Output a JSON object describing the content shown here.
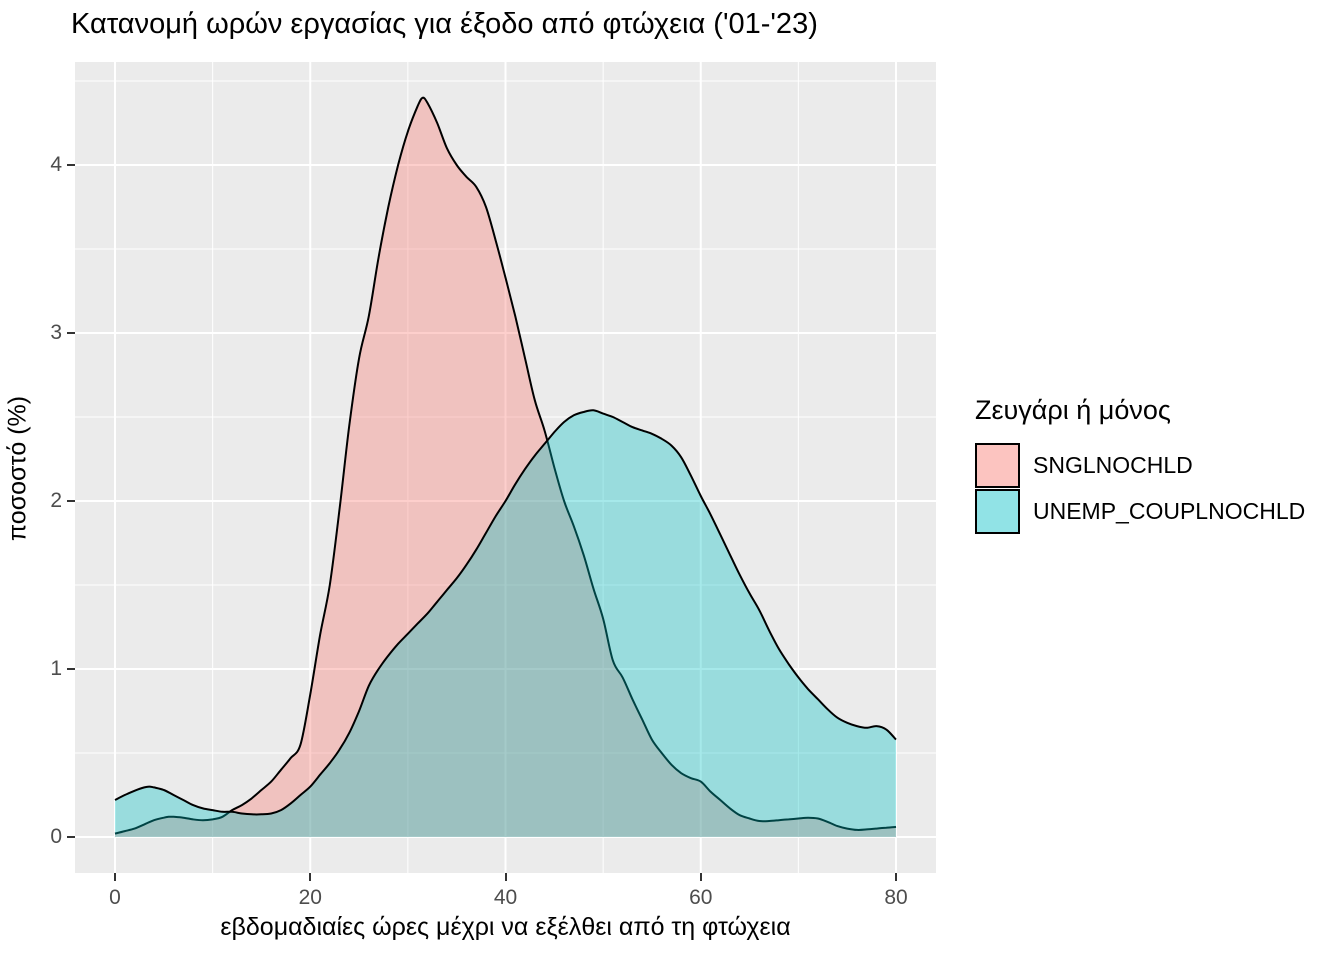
{
  "title": "Κατανομή ωρών εργασίας για έξοδο από φτώχεια ('01-'23)",
  "axes": {
    "x": {
      "label": "εβδομαδιαίες ώρες μέχρι να εξέλθει από τη φτώχεια",
      "tick_labels": [
        "0",
        "20",
        "40",
        "60",
        "80"
      ],
      "tick_values": [
        0,
        20,
        40,
        60,
        80
      ],
      "minor_tick_values": [
        10,
        30,
        50,
        70
      ]
    },
    "y": {
      "label": "ποσοστό (%)",
      "tick_labels": [
        "0",
        "1",
        "2",
        "3",
        "4"
      ],
      "tick_values": [
        0,
        1,
        2,
        3,
        4
      ],
      "minor_tick_values": [
        0.5,
        1.5,
        2.5,
        3.5,
        4.5
      ]
    }
  },
  "legend": {
    "title": "Ζευγάρι ή μόνος",
    "items": [
      {
        "label": "SNGLNOCHLD",
        "fill": "#F8766D"
      },
      {
        "label": "UNEMP_COUPLNOCHLD",
        "fill": "#00BFC4"
      }
    ]
  },
  "colors": {
    "panel_background": "#EBEBEB",
    "gridline": "#FFFFFF",
    "tick_label": "#4D4D4D",
    "tick_mark": "#333333",
    "outline": "#000000",
    "series_pink": "#F8766D",
    "series_teal": "#00BFC4",
    "fill_opacity": 0.35
  },
  "chart_data": {
    "type": "area",
    "subtype": "density",
    "title": "Κατανομή ωρών εργασίας για έξοδο από φτώχεια ('01-'23)",
    "xlabel": "εβδομαδιαίες ώρες μέχρι να εξέλθει από τη φτώχεια",
    "ylabel": "ποσοστό (%)",
    "xlim": [
      -4.1,
      84.2
    ],
    "ylim": [
      -0.21,
      4.61
    ],
    "x_data_range": [
      0,
      80
    ],
    "grid": true,
    "legend_position": "right",
    "legend_title": "Ζευγάρι ή μόνος",
    "series": [
      {
        "name": "SNGLNOCHLD",
        "fill": "#F8766D",
        "peak": {
          "x": 31.5,
          "y": 4.4
        },
        "points": [
          [
            0,
            0.02
          ],
          [
            1,
            0.035
          ],
          [
            2,
            0.05
          ],
          [
            3,
            0.075
          ],
          [
            4,
            0.1
          ],
          [
            5,
            0.115
          ],
          [
            5.5,
            0.12
          ],
          [
            6,
            0.12
          ],
          [
            7,
            0.115
          ],
          [
            8,
            0.105
          ],
          [
            9,
            0.1
          ],
          [
            10,
            0.105
          ],
          [
            11,
            0.12
          ],
          [
            12,
            0.16
          ],
          [
            13,
            0.19
          ],
          [
            14,
            0.23
          ],
          [
            15,
            0.28
          ],
          [
            16,
            0.33
          ],
          [
            17,
            0.4
          ],
          [
            18,
            0.47
          ],
          [
            19,
            0.55
          ],
          [
            20,
            0.85
          ],
          [
            21,
            1.2
          ],
          [
            22,
            1.5
          ],
          [
            23,
            1.95
          ],
          [
            24,
            2.45
          ],
          [
            25,
            2.85
          ],
          [
            26,
            3.1
          ],
          [
            27,
            3.45
          ],
          [
            28,
            3.75
          ],
          [
            29,
            4.0
          ],
          [
            30,
            4.2
          ],
          [
            31,
            4.35
          ],
          [
            31.5,
            4.4
          ],
          [
            32,
            4.37
          ],
          [
            33,
            4.25
          ],
          [
            34,
            4.1
          ],
          [
            35,
            4.0
          ],
          [
            36,
            3.93
          ],
          [
            37,
            3.87
          ],
          [
            38,
            3.75
          ],
          [
            39,
            3.55
          ],
          [
            40,
            3.33
          ],
          [
            41,
            3.1
          ],
          [
            42,
            2.85
          ],
          [
            43,
            2.6
          ],
          [
            44,
            2.42
          ],
          [
            45,
            2.2
          ],
          [
            46,
            2.0
          ],
          [
            47,
            1.85
          ],
          [
            48,
            1.68
          ],
          [
            49,
            1.48
          ],
          [
            50,
            1.3
          ],
          [
            51,
            1.05
          ],
          [
            52,
            0.95
          ],
          [
            53,
            0.82
          ],
          [
            54,
            0.7
          ],
          [
            55,
            0.58
          ],
          [
            56,
            0.5
          ],
          [
            57,
            0.43
          ],
          [
            58,
            0.38
          ],
          [
            59,
            0.35
          ],
          [
            60,
            0.33
          ],
          [
            61,
            0.27
          ],
          [
            62,
            0.22
          ],
          [
            63,
            0.17
          ],
          [
            64,
            0.13
          ],
          [
            65,
            0.11
          ],
          [
            66,
            0.095
          ],
          [
            67,
            0.095
          ],
          [
            68,
            0.1
          ],
          [
            69,
            0.105
          ],
          [
            70,
            0.11
          ],
          [
            71,
            0.115
          ],
          [
            72,
            0.11
          ],
          [
            73,
            0.09
          ],
          [
            74,
            0.065
          ],
          [
            75,
            0.05
          ],
          [
            76,
            0.042
          ],
          [
            77,
            0.045
          ],
          [
            78,
            0.05
          ],
          [
            79,
            0.055
          ],
          [
            80,
            0.06
          ]
        ]
      },
      {
        "name": "UNEMP_COUPLNOCHLD",
        "fill": "#00BFC4",
        "peak": {
          "x": 49,
          "y": 2.54
        },
        "points": [
          [
            0,
            0.22
          ],
          [
            1,
            0.25
          ],
          [
            2,
            0.275
          ],
          [
            3,
            0.295
          ],
          [
            3.5,
            0.3
          ],
          [
            4,
            0.295
          ],
          [
            5,
            0.28
          ],
          [
            6,
            0.25
          ],
          [
            7,
            0.22
          ],
          [
            8,
            0.19
          ],
          [
            9,
            0.17
          ],
          [
            10,
            0.16
          ],
          [
            11,
            0.15
          ],
          [
            12,
            0.15
          ],
          [
            13,
            0.14
          ],
          [
            14,
            0.135
          ],
          [
            15,
            0.135
          ],
          [
            16,
            0.14
          ],
          [
            17,
            0.16
          ],
          [
            18,
            0.2
          ],
          [
            19,
            0.25
          ],
          [
            20,
            0.3
          ],
          [
            21,
            0.37
          ],
          [
            22,
            0.44
          ],
          [
            23,
            0.52
          ],
          [
            24,
            0.62
          ],
          [
            25,
            0.75
          ],
          [
            26,
            0.9
          ],
          [
            27,
            1.0
          ],
          [
            28,
            1.08
          ],
          [
            29,
            1.15
          ],
          [
            30,
            1.21
          ],
          [
            31,
            1.27
          ],
          [
            32,
            1.33
          ],
          [
            33,
            1.4
          ],
          [
            34,
            1.47
          ],
          [
            35,
            1.54
          ],
          [
            36,
            1.62
          ],
          [
            37,
            1.71
          ],
          [
            38,
            1.81
          ],
          [
            39,
            1.91
          ],
          [
            40,
            2.0
          ],
          [
            41,
            2.1
          ],
          [
            42,
            2.19
          ],
          [
            43,
            2.27
          ],
          [
            44,
            2.34
          ],
          [
            45,
            2.41
          ],
          [
            46,
            2.47
          ],
          [
            47,
            2.51
          ],
          [
            48,
            2.53
          ],
          [
            49,
            2.54
          ],
          [
            50,
            2.52
          ],
          [
            51,
            2.5
          ],
          [
            52,
            2.47
          ],
          [
            53,
            2.44
          ],
          [
            54,
            2.42
          ],
          [
            55,
            2.4
          ],
          [
            56,
            2.37
          ],
          [
            57,
            2.33
          ],
          [
            58,
            2.26
          ],
          [
            59,
            2.15
          ],
          [
            60,
            2.03
          ],
          [
            61,
            1.92
          ],
          [
            62,
            1.8
          ],
          [
            63,
            1.68
          ],
          [
            64,
            1.56
          ],
          [
            65,
            1.45
          ],
          [
            66,
            1.35
          ],
          [
            67,
            1.23
          ],
          [
            68,
            1.12
          ],
          [
            69,
            1.03
          ],
          [
            70,
            0.95
          ],
          [
            71,
            0.88
          ],
          [
            72,
            0.82
          ],
          [
            73,
            0.76
          ],
          [
            74,
            0.71
          ],
          [
            75,
            0.68
          ],
          [
            76,
            0.66
          ],
          [
            77,
            0.65
          ],
          [
            78,
            0.66
          ],
          [
            79,
            0.64
          ],
          [
            80,
            0.58
          ]
        ]
      }
    ]
  }
}
